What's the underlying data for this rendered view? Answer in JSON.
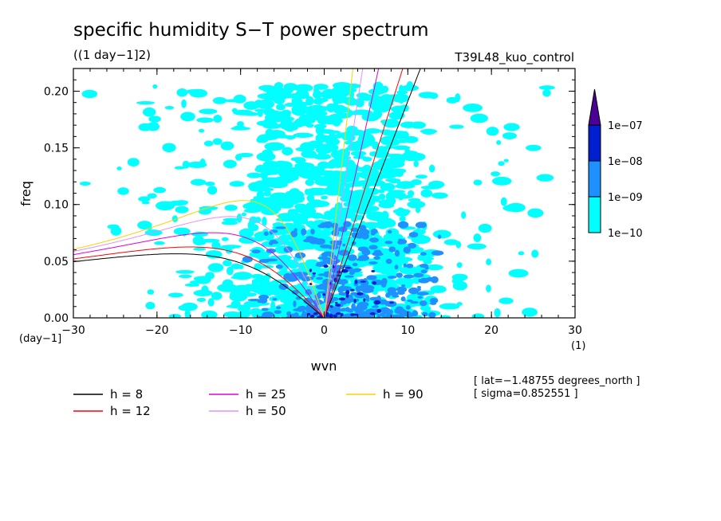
{
  "chart_data": {
    "type": "heatmap",
    "title": "specific humidity S−T power spectrum",
    "subtitle": "((1 day−1]2)",
    "run_label": "T39L48_kuo_control",
    "xlabel": "wvn",
    "ylabel": "freq",
    "x_unit": "(1)",
    "y_unit": "(day−1]",
    "xlim": [
      -30,
      30
    ],
    "ylim": [
      0,
      0.22
    ],
    "x_ticks": [
      -30,
      -20,
      -10,
      0,
      10,
      20,
      30
    ],
    "x_tick_labels": [
      "−30",
      "−20",
      "−10",
      "0",
      "10",
      "20",
      "30"
    ],
    "y_ticks": [
      0.0,
      0.05,
      0.1,
      0.15,
      0.2
    ],
    "y_tick_labels": [
      "0.00",
      "0.05",
      "0.10",
      "0.15",
      "0.20"
    ],
    "colorbar": {
      "levels": [
        "1e−10",
        "1e−09",
        "1e−08",
        "1e−07"
      ],
      "colors": [
        "#00ffff",
        "#1e90ff",
        "#0020d0",
        "#4b0096"
      ]
    },
    "field": {
      "description": "space-time power density, contoured by levels",
      "max_at_wvn": [
        0,
        4
      ],
      "max_at_freq": [
        0.0,
        0.05
      ]
    },
    "dispersion_curves": [
      {
        "name": "h = 8",
        "h": 8,
        "color": "#000000"
      },
      {
        "name": "h = 12",
        "h": 12,
        "color": "#ff0000"
      },
      {
        "name": "h = 25",
        "h": 25,
        "color": "#e000e0"
      },
      {
        "name": "h = 50",
        "h": 50,
        "color": "#e090ff"
      },
      {
        "name": "h = 90",
        "h": 90,
        "color": "#ffd000"
      }
    ],
    "info": [
      "[ lat=−1.48755 degrees_north ]",
      "[ sigma=0.852551 ]"
    ]
  }
}
